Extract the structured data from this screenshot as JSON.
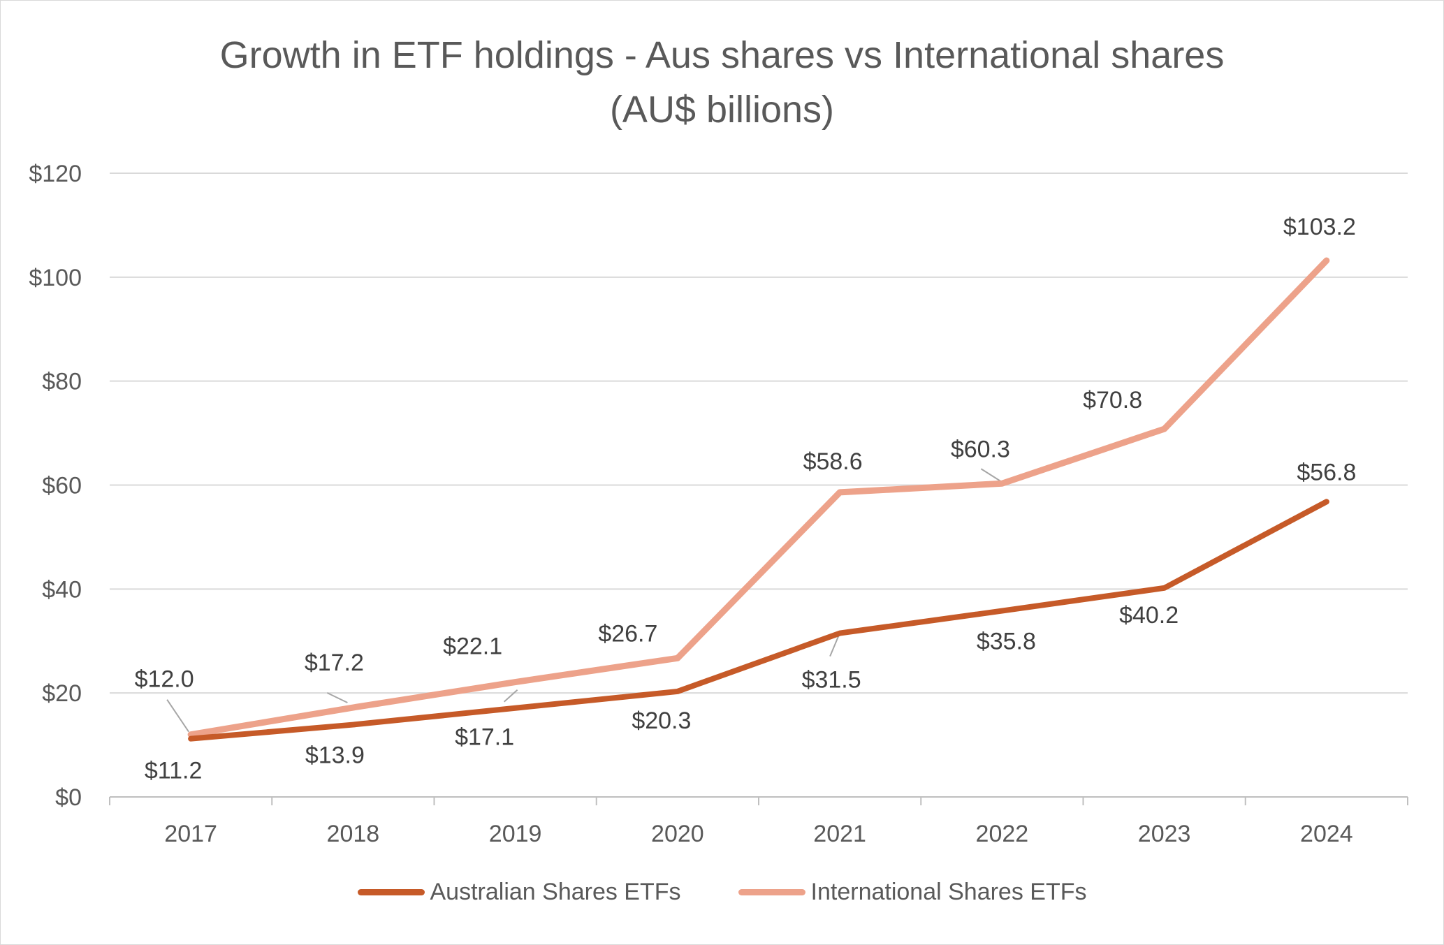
{
  "chart_data": {
    "type": "line",
    "title_lines": [
      "Growth in ETF holdings - Aus shares vs International shares",
      "(AU$ billions)"
    ],
    "categories": [
      "2017",
      "2018",
      "2019",
      "2020",
      "2021",
      "2022",
      "2023",
      "2024"
    ],
    "ylim": [
      0,
      120
    ],
    "yticks": [
      0,
      20,
      40,
      60,
      80,
      100,
      120
    ],
    "ytick_labels": [
      "$0",
      "$20",
      "$40",
      "$60",
      "$80",
      "$100",
      "$120"
    ],
    "grid": true,
    "legend_position": "bottom",
    "series": [
      {
        "name": "Australian Shares ETFs",
        "color": "#C65A28",
        "values": [
          11.2,
          13.9,
          17.1,
          20.3,
          31.5,
          35.8,
          40.2,
          56.8
        ],
        "labels": [
          "$11.2",
          "$13.9",
          "$17.1",
          "$20.3",
          "$31.5",
          "$35.8",
          "$40.2",
          "$56.8"
        ]
      },
      {
        "name": "International Shares ETFs",
        "color": "#EDA28A",
        "values": [
          12.0,
          17.2,
          22.1,
          26.7,
          58.6,
          60.3,
          70.8,
          103.2
        ],
        "labels": [
          "$12.0",
          "$17.2",
          "$22.1",
          "$26.7",
          "$58.6",
          "$60.3",
          "$70.8",
          "$103.2"
        ]
      }
    ]
  }
}
